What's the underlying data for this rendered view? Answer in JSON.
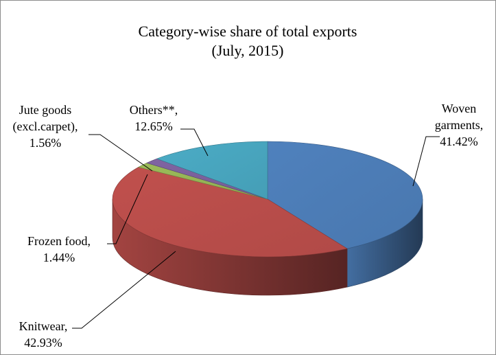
{
  "chart_data": {
    "type": "pie",
    "title": "Category-wise share of total exports",
    "subtitle": "(July, 2015)",
    "unit": "%",
    "slices": [
      {
        "label_lines": [
          "Woven",
          "garments,",
          "41.42%"
        ],
        "value": 41.42,
        "color": "#4F81BD"
      },
      {
        "label_lines": [
          "Knitwear,",
          "42.93%"
        ],
        "value": 42.93,
        "color": "#C0504D"
      },
      {
        "label_lines": [
          "Frozen food,",
          "1.44%"
        ],
        "value": 1.44,
        "color": "#9BBB59"
      },
      {
        "label_lines": [
          "Jute goods",
          "(excl.carpet),",
          "1.56%"
        ],
        "value": 1.56,
        "color": "#8064A2"
      },
      {
        "label_lines": [
          "Others**,",
          "12.65%"
        ],
        "value": 12.65,
        "color": "#4BACC6"
      }
    ],
    "legend": "none",
    "grid": false,
    "view": "3d"
  }
}
